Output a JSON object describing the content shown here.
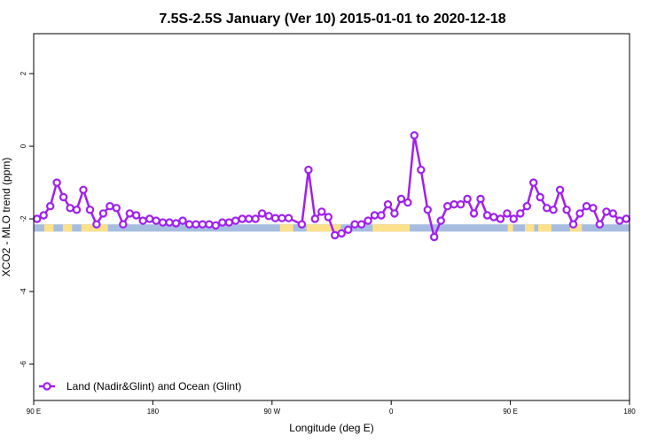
{
  "chart_data": {
    "type": "line",
    "title": "7.5S-2.5S January (Ver 10)   2015-01-01 to 2020-12-18",
    "xlabel": "Longitude (deg E)",
    "ylabel": "XCO2 - MLO trend (ppm)",
    "xlim": [
      90,
      540
    ],
    "ylim": [
      -7,
      3.1
    ],
    "x_ticks": [
      {
        "value": 90,
        "label": "90 E"
      },
      {
        "value": 180,
        "label": "180"
      },
      {
        "value": 270,
        "label": "90 W"
      },
      {
        "value": 360,
        "label": "0"
      },
      {
        "value": 450,
        "label": "90 E"
      },
      {
        "value": 540,
        "label": "180"
      }
    ],
    "y_ticks": [
      {
        "value": 2,
        "label": "2"
      },
      {
        "value": 0,
        "label": "0"
      },
      {
        "value": -2,
        "label": "-2"
      },
      {
        "value": -4,
        "label": "-4"
      },
      {
        "value": -6,
        "label": "-6"
      }
    ],
    "legend": {
      "placement": "bottom-left",
      "entries": [
        "Land (Nadir&Glint) and Ocean (Glint)"
      ]
    },
    "series": [
      {
        "name": "Land (Nadir&Glint) and Ocean (Glint)",
        "color": "#a020f0",
        "x": [
          92.5,
          97.5,
          102.5,
          107.5,
          112.5,
          117.5,
          122.5,
          127.5,
          132.5,
          137.5,
          142.5,
          147.5,
          152.5,
          157.5,
          162.5,
          167.5,
          172.5,
          177.5,
          182.5,
          187.5,
          192.5,
          197.5,
          202.5,
          207.5,
          212.5,
          217.5,
          222.5,
          227.5,
          232.5,
          237.5,
          242.5,
          247.5,
          252.5,
          257.5,
          262.5,
          267.5,
          272.5,
          277.5,
          282.5,
          292.5,
          297.5,
          302.5,
          307.5,
          312.5,
          317.5,
          322.5,
          327.5,
          332.5,
          337.5,
          342.5,
          347.5,
          352.5,
          357.5,
          362.5,
          367.5,
          372.5,
          377.5,
          382.5,
          387.5,
          392.5,
          397.5,
          402.5,
          407.5,
          412.5,
          417.5,
          422.5,
          427.5,
          432.5,
          437.5,
          442.5,
          447.5,
          452.5,
          457.5,
          462.5,
          467.5,
          472.5,
          477.5,
          482.5,
          487.5,
          492.5,
          497.5,
          502.5,
          507.5,
          512.5,
          517.5,
          522.5,
          527.5,
          532.5,
          537.5
        ],
        "y": [
          -2.0,
          -1.9,
          -1.65,
          -1.0,
          -1.4,
          -1.7,
          -1.75,
          -1.2,
          -1.75,
          -2.15,
          -1.85,
          -1.65,
          -1.7,
          -2.15,
          -1.85,
          -1.9,
          -2.05,
          -2.0,
          -2.05,
          -2.1,
          -2.1,
          -2.12,
          -2.05,
          -2.15,
          -2.15,
          -2.15,
          -2.15,
          -2.18,
          -2.1,
          -2.1,
          -2.05,
          -2.0,
          -2.0,
          -2.0,
          -1.85,
          -1.92,
          -1.98,
          -1.98,
          -1.98,
          -2.15,
          -0.65,
          -2.0,
          -1.8,
          -1.95,
          -2.45,
          -2.4,
          -2.3,
          -2.15,
          -2.15,
          -2.05,
          -1.9,
          -1.9,
          -1.6,
          -1.85,
          -1.45,
          -1.55,
          0.3,
          -0.65,
          -1.75,
          -2.5,
          -2.05,
          -1.65,
          -1.6,
          -1.6,
          -1.45,
          -1.85,
          -1.45,
          -1.9,
          -1.95,
          -2.0,
          -1.85,
          -2.0,
          -1.85,
          -1.65,
          -1.0,
          -1.4,
          -1.7,
          -1.75,
          -1.2,
          -1.75,
          -2.15,
          -1.85,
          -1.65,
          -1.7,
          -2.15,
          -1.8,
          -1.85,
          -2.05,
          -2.0
        ]
      }
    ],
    "band": {
      "y_range": [
        -2.35,
        -2.15
      ],
      "ocean_color": "#a7bde0",
      "land_color": "#fde08a",
      "land_segments": [
        [
          98,
          105
        ],
        [
          112,
          119
        ],
        [
          126,
          146
        ],
        [
          276,
          286
        ],
        [
          296,
          322
        ],
        [
          346,
          374
        ],
        [
          448,
          452
        ],
        [
          461,
          468
        ],
        [
          471,
          481
        ],
        [
          495,
          504
        ]
      ]
    }
  }
}
